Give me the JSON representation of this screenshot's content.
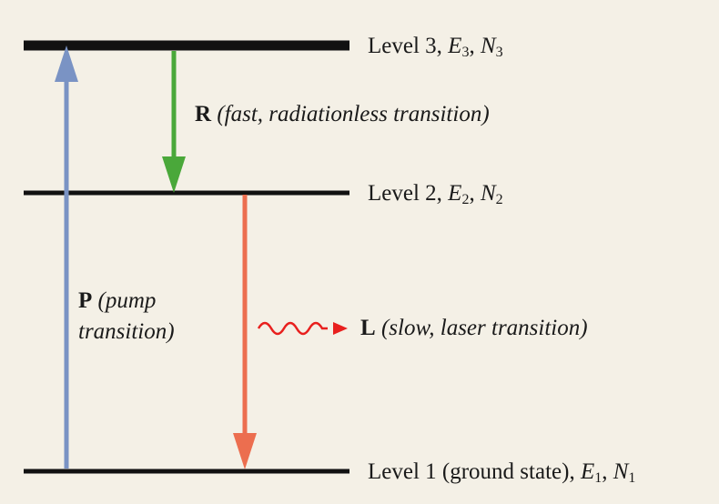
{
  "levels": [
    {
      "id": "level-3",
      "text": "Level 3, ",
      "energy": "E",
      "energy_sub": "3",
      "sep": ", ",
      "pop": "N",
      "pop_sub": "3"
    },
    {
      "id": "level-2",
      "text": "Level 2, ",
      "energy": "E",
      "energy_sub": "2",
      "sep": ", ",
      "pop": "N",
      "pop_sub": "2"
    },
    {
      "id": "level-1",
      "text": "Level 1 (ground state), ",
      "energy": "E",
      "energy_sub": "1",
      "sep": ", ",
      "pop": "N",
      "pop_sub": "1"
    }
  ],
  "transitions": {
    "pump": {
      "letter": "P",
      "line1": "(pump",
      "line2": "transition)",
      "color": "#7a93c4"
    },
    "radiationless": {
      "letter": "R",
      "desc": "(fast, radiationless transition)",
      "color": "#4aa83a"
    },
    "laser": {
      "letter": "L",
      "desc": "(slow, laser transition)",
      "color": "#ec6e4f",
      "photon_color": "#e8201e"
    }
  },
  "colors": {
    "background": "#f4f0e6",
    "level_line": "#111111"
  }
}
